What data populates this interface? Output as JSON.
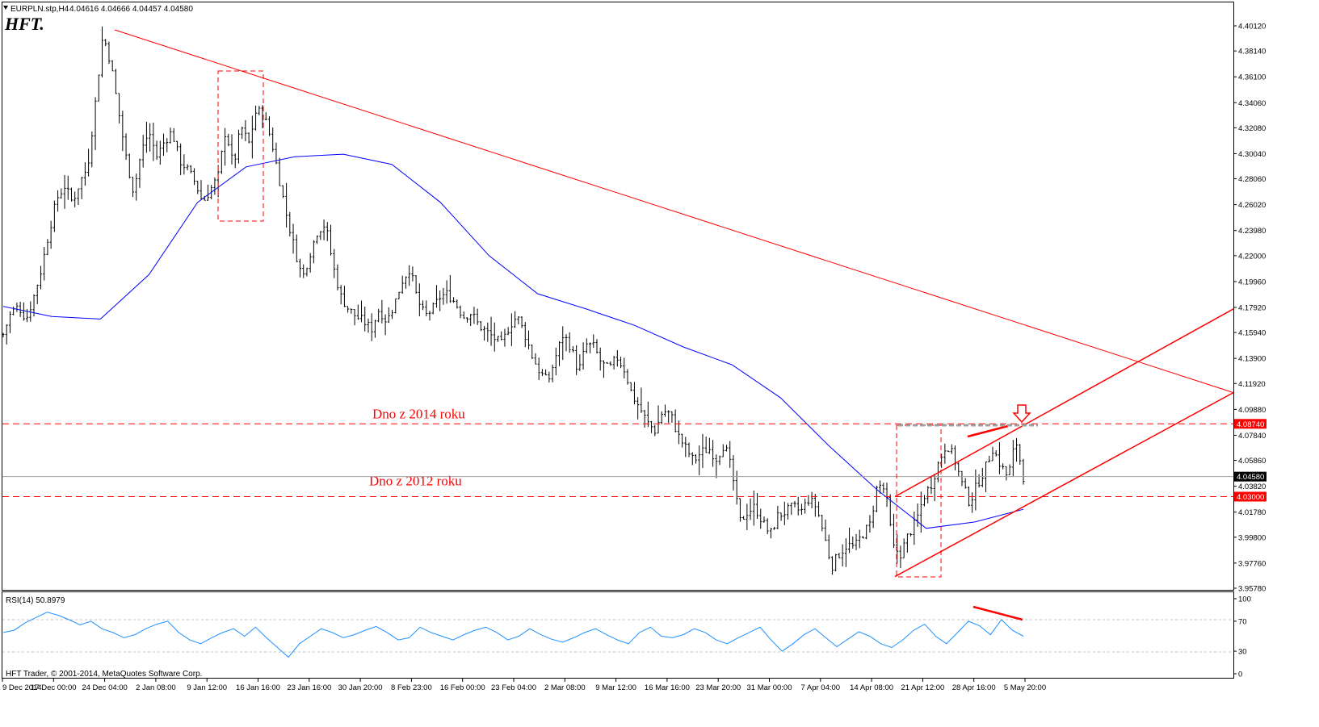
{
  "header": {
    "title": "EURPLN.stp,H4",
    "ohlc": "4.04616 4.04666 4.04457 4.04580",
    "logo": "HFT."
  },
  "colors": {
    "background": "#ffffff",
    "bars": "#000000",
    "ma": "#0000ff",
    "annotation": "#ff0000",
    "rsi": "#1e90ff",
    "grid_dash": "#c0c0c0"
  },
  "icons": {
    "menu": "triangle-down-icon",
    "marker": "arrow-down-icon"
  },
  "chart_data": [
    {
      "type": "ohlc",
      "symbol": "EURPLN",
      "timeframe": "H4",
      "last": {
        "open": 4.04616,
        "high": 4.04666,
        "low": 4.04457,
        "close": 4.0458
      },
      "ylim": [
        3.9578,
        4.4012
      ],
      "y_ticks": [
        "4.40120",
        "4.38140",
        "4.36100",
        "4.34060",
        "4.32080",
        "4.30040",
        "4.28060",
        "4.26020",
        "4.23980",
        "4.22000",
        "4.19960",
        "4.17920",
        "4.15940",
        "4.13900",
        "4.11920",
        "4.09880",
        "4.07840",
        "4.05860",
        "4.03820",
        "4.01780",
        "3.99800",
        "3.97760",
        "3.95780"
      ],
      "x_ticks": [
        "9 Dec 2014",
        "17 Dec 00:00",
        "24 Dec 04:00",
        "2 Jan 08:00",
        "9 Jan 12:00",
        "16 Jan 16:00",
        "23 Jan 16:00",
        "30 Jan 20:00",
        "8 Feb 23:00",
        "16 Feb 00:00",
        "23 Feb 04:00",
        "2 Mar 08:00",
        "9 Mar 12:00",
        "16 Mar 16:00",
        "23 Mar 20:00",
        "31 Mar 00:00",
        "7 Apr 04:00",
        "14 Apr 08:00",
        "21 Apr 12:00",
        "28 Apr 16:00",
        "5 May 20:00"
      ],
      "price_path": [
        4.158,
        4.175,
        4.18,
        4.17,
        4.188,
        4.21,
        4.24,
        4.265,
        4.275,
        4.262,
        4.278,
        4.29,
        4.34,
        4.395,
        4.372,
        4.335,
        4.298,
        4.27,
        4.302,
        4.318,
        4.298,
        4.31,
        4.318,
        4.295,
        4.288,
        4.278,
        4.262,
        4.272,
        4.282,
        4.32,
        4.29,
        4.322,
        4.308,
        4.335,
        4.33,
        4.31,
        4.28,
        4.25,
        4.225,
        4.202,
        4.222,
        4.24,
        4.245,
        4.212,
        4.188,
        4.178,
        4.172,
        4.168,
        4.162,
        4.178,
        4.168,
        4.182,
        4.2,
        4.21,
        4.185,
        4.172,
        4.178,
        4.188,
        4.19,
        4.182,
        4.172,
        4.175,
        4.165,
        4.16,
        4.155,
        4.15,
        4.165,
        4.172,
        4.158,
        4.14,
        4.128,
        4.12,
        4.14,
        4.158,
        4.148,
        4.128,
        4.15,
        4.148,
        4.135,
        4.13,
        4.14,
        4.13,
        4.11,
        4.1,
        4.088,
        4.082,
        4.098,
        4.095,
        4.078,
        4.068,
        4.058,
        4.065,
        4.068,
        4.06,
        4.072,
        4.05,
        4.01,
        4.018,
        4.022,
        4.01,
        4.0,
        4.015,
        4.018,
        4.022,
        4.018,
        4.028,
        4.022,
        4.0,
        3.975,
        3.985,
        3.992,
        3.99,
        4.0,
        4.008,
        4.04,
        4.035,
        3.99,
        3.985,
        4.0,
        4.01,
        4.03,
        4.04,
        4.058,
        4.072,
        4.06,
        4.04,
        4.025,
        4.04,
        4.052,
        4.068,
        4.055,
        4.045,
        4.075,
        4.046
      ],
      "ma": [
        4.18,
        4.172,
        4.17,
        4.205,
        4.262,
        4.29,
        4.298,
        4.3,
        4.292,
        4.262,
        4.22,
        4.19,
        4.178,
        4.165,
        4.148,
        4.134,
        4.108,
        4.07,
        4.035,
        4.005,
        4.01,
        4.02
      ],
      "annotations": [
        {
          "type": "hline",
          "value": 4.0874,
          "label": "Dno z 2014 roku"
        },
        {
          "type": "hline",
          "value": 4.03,
          "label": "Dno z 2012 roku"
        },
        {
          "type": "price_tag",
          "value": "4.08740"
        },
        {
          "type": "price_tag",
          "value": "4.03000"
        },
        {
          "type": "current_price",
          "value": "4.04580"
        },
        {
          "type": "trendline",
          "from": [
            "24 Dec 04:00",
            4.398
          ],
          "to": [
            "end",
            4.112
          ]
        },
        {
          "type": "channel",
          "upper": [
            "21 Apr 12:00",
            4.03,
            "end",
            4.178
          ],
          "lower": [
            "21 Apr 12:00",
            3.967,
            "end",
            4.112
          ]
        }
      ]
    },
    {
      "type": "line",
      "title": "RSI(14) 50.8979",
      "indicator": "RSI(14)",
      "last": 50.8979,
      "ylim": [
        0,
        100
      ],
      "y_ticks": [
        "100",
        "70",
        "30",
        "0"
      ],
      "levels": [
        70,
        30
      ],
      "values": [
        55,
        58,
        68,
        75,
        82,
        78,
        72,
        65,
        70,
        60,
        55,
        48,
        52,
        60,
        66,
        70,
        55,
        45,
        40,
        48,
        55,
        60,
        50,
        62,
        48,
        35,
        22,
        40,
        50,
        60,
        55,
        48,
        52,
        58,
        63,
        55,
        45,
        48,
        62,
        55,
        50,
        45,
        52,
        58,
        62,
        55,
        45,
        50,
        60,
        52,
        46,
        42,
        48,
        55,
        60,
        52,
        45,
        40,
        55,
        62,
        50,
        48,
        52,
        60,
        55,
        45,
        40,
        48,
        55,
        62,
        45,
        30,
        40,
        52,
        60,
        48,
        36,
        46,
        56,
        50,
        40,
        35,
        45,
        58,
        66,
        50,
        40,
        55,
        70,
        64,
        52,
        72,
        58,
        50
      ]
    }
  ],
  "footer": {
    "copyright": "HFT Trader, © 2001-2014, MetaQuotes Software Corp."
  }
}
